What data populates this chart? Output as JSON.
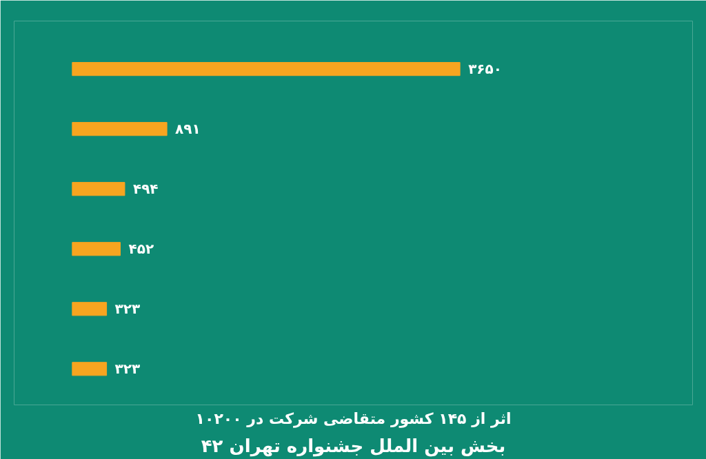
{
  "chart_data": {
    "type": "bar",
    "orientation": "horizontal",
    "title": "۱۰۲۰۰ اثر از ۱۴۵ کشور متقاضی شرکت در",
    "subtitle": "بخش بین الملل جشنواره تهران ۴۲",
    "categories": [
      null,
      null,
      null,
      null,
      null,
      null
    ],
    "values": [
      3650,
      891,
      494,
      452,
      323,
      323
    ],
    "value_labels": [
      "۳۶۵۰",
      "۸۹۱",
      "۴۹۴",
      "۴۵۲",
      "۳۲۳",
      "۳۲۳"
    ],
    "color": "#f7a520",
    "grid": false
  }
}
